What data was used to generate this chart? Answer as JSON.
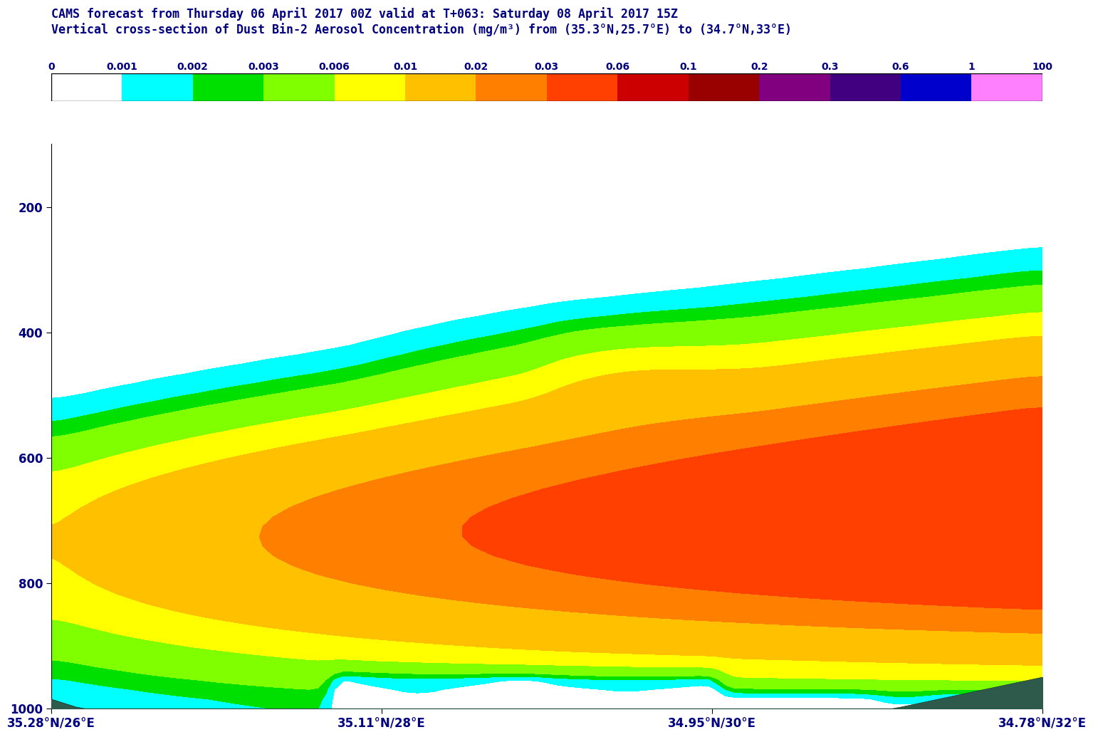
{
  "title1": "CAMS forecast from Thursday 06 April 2017 00Z valid at T+063: Saturday 08 April 2017 15Z",
  "title2": "Vertical cross-section of Dust Bin-2 Aerosol Concentration (mg/m³) from (35.3°N,25.7°E) to (34.7°N,33°E)",
  "xlabel_ticks": [
    "35.28°N/26°E",
    "35.11°N/28°E",
    "34.95°N/30°E",
    "34.78°N/32°E"
  ],
  "yticks": [
    200,
    400,
    600,
    800,
    1000
  ],
  "ylabel": "",
  "colorbar_levels": [
    0,
    0.001,
    0.002,
    0.003,
    0.006,
    0.01,
    0.02,
    0.03,
    0.06,
    0.1,
    0.2,
    0.3,
    0.6,
    1,
    100
  ],
  "colorbar_colors": [
    "#ffffff",
    "#00ffff",
    "#00e000",
    "#80ff00",
    "#ffff00",
    "#ffc000",
    "#ff8000",
    "#ff4000",
    "#cc0000",
    "#990000",
    "#800080",
    "#400080",
    "#0000cc",
    "#ff80ff"
  ],
  "title_color": "#000080",
  "axis_color": "#000000",
  "background_color": "#ffffff",
  "plot_bg_color": "#ffffff",
  "terrain_color": "#2d5a4a",
  "nx": 100,
  "ny": 50
}
